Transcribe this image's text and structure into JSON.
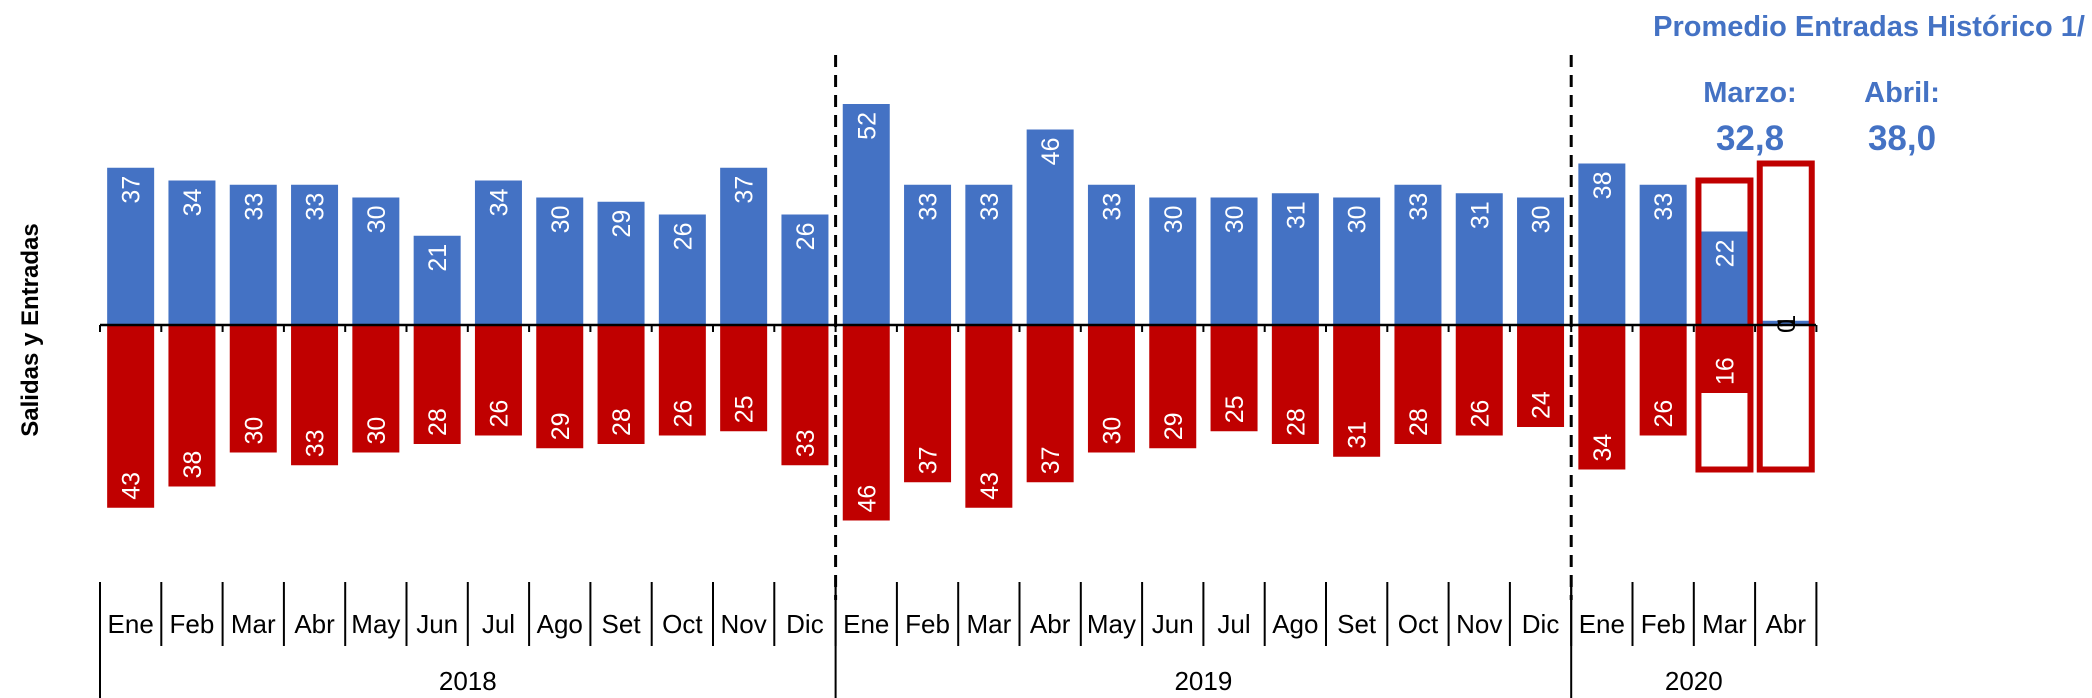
{
  "chart_data": {
    "type": "bar",
    "ylabel": "Salidas  y  Entradas",
    "categories": [
      "Ene",
      "Feb",
      "Mar",
      "Abr",
      "May",
      "Jun",
      "Jul",
      "Ago",
      "Set",
      "Oct",
      "Nov",
      "Dic",
      "Ene",
      "Feb",
      "Mar",
      "Abr",
      "May",
      "Jun",
      "Jul",
      "Ago",
      "Set",
      "Oct",
      "Nov",
      "Dic",
      "Ene",
      "Feb",
      "Mar",
      "Abr"
    ],
    "years": [
      {
        "label": "2018",
        "months": 12
      },
      {
        "label": "2019",
        "months": 12
      },
      {
        "label": "2020",
        "months": 4
      }
    ],
    "series": [
      {
        "name": "",
        "color": "#4472c4",
        "values": [
          37,
          34,
          33,
          33,
          30,
          21,
          34,
          30,
          29,
          26,
          37,
          26,
          52,
          33,
          33,
          46,
          33,
          30,
          30,
          31,
          30,
          33,
          31,
          30,
          38,
          33,
          22,
          1
        ]
      },
      {
        "name": "",
        "color": "#c00000",
        "values": [
          43,
          38,
          30,
          33,
          30,
          28,
          26,
          29,
          28,
          26,
          25,
          33,
          46,
          37,
          43,
          37,
          30,
          29,
          25,
          28,
          31,
          28,
          26,
          24,
          34,
          26,
          16,
          0
        ]
      }
    ],
    "highlight": {
      "title": "Promedio Entradas Histórico 1/",
      "color": "#c00000",
      "items": [
        {
          "label": "Marzo:",
          "value": "32,8",
          "category_index": 26,
          "reference": 34
        },
        {
          "label": "Abril:",
          "value": "38,0",
          "category_index": 27,
          "reference": 38
        }
      ]
    }
  }
}
